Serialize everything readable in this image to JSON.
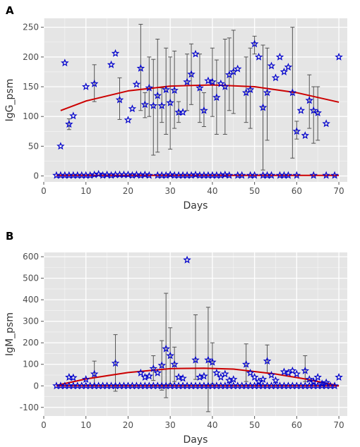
{
  "style": {
    "panel_bg": "#e5e5e5",
    "grid_color": "#ffffff",
    "marker_color": "#0000cc",
    "curve_color": "#cc0000",
    "errorbar_color": "#555555"
  },
  "chart_data": [
    {
      "type": "scatter",
      "panel_label": "A",
      "xlabel": "Days",
      "ylabel": "IgG_psm",
      "xlim": [
        0,
        72
      ],
      "ylim": [
        -10,
        265
      ],
      "xticks": [
        0,
        10,
        20,
        30,
        40,
        50,
        60,
        70
      ],
      "yticks": [
        0,
        50,
        100,
        150,
        200,
        250
      ],
      "grid": true,
      "marker": "star",
      "points": [
        {
          "x": 4,
          "y": 50
        },
        {
          "x": 5,
          "y": 190
        },
        {
          "x": 6,
          "y": 87,
          "lo": 78,
          "hi": 96
        },
        {
          "x": 7,
          "y": 101
        },
        {
          "x": 10,
          "y": 150
        },
        {
          "x": 12,
          "y": 155,
          "lo": 125,
          "hi": 187
        },
        {
          "x": 16,
          "y": 187
        },
        {
          "x": 17,
          "y": 206
        },
        {
          "x": 18,
          "y": 128,
          "lo": 95,
          "hi": 165
        },
        {
          "x": 20,
          "y": 94
        },
        {
          "x": 21,
          "y": 113
        },
        {
          "x": 22,
          "y": 154
        },
        {
          "x": 23,
          "y": 181,
          "lo": 110,
          "hi": 255
        },
        {
          "x": 24,
          "y": 120,
          "lo": 98,
          "hi": 140
        },
        {
          "x": 25,
          "y": 148,
          "lo": 100,
          "hi": 200
        },
        {
          "x": 26,
          "y": 118,
          "lo": 35,
          "hi": 196
        },
        {
          "x": 27,
          "y": 135,
          "lo": 40,
          "hi": 230
        },
        {
          "x": 28,
          "y": 118,
          "lo": 90,
          "hi": 148
        },
        {
          "x": 29,
          "y": 145,
          "lo": 70,
          "hi": 215
        },
        {
          "x": 30,
          "y": 123,
          "lo": 45,
          "hi": 200
        },
        {
          "x": 31,
          "y": 144,
          "lo": 80,
          "hi": 210
        },
        {
          "x": 32,
          "y": 107,
          "lo": 90,
          "hi": 125
        },
        {
          "x": 33,
          "y": 107
        },
        {
          "x": 34,
          "y": 158,
          "lo": 110,
          "hi": 205
        },
        {
          "x": 35,
          "y": 171,
          "lo": 120,
          "hi": 222
        },
        {
          "x": 36,
          "y": 205
        },
        {
          "x": 37,
          "y": 148,
          "lo": 90,
          "hi": 205
        },
        {
          "x": 38,
          "y": 110,
          "lo": 83,
          "hi": 140
        },
        {
          "x": 39,
          "y": 160
        },
        {
          "x": 40,
          "y": 158,
          "lo": 100,
          "hi": 215
        },
        {
          "x": 41,
          "y": 132,
          "lo": 70,
          "hi": 195
        },
        {
          "x": 42,
          "y": 155
        },
        {
          "x": 43,
          "y": 150,
          "lo": 70,
          "hi": 230
        },
        {
          "x": 44,
          "y": 170,
          "lo": 110,
          "hi": 232
        },
        {
          "x": 45,
          "y": 175,
          "lo": 105,
          "hi": 245
        },
        {
          "x": 46,
          "y": 180
        },
        {
          "x": 48,
          "y": 140,
          "lo": 90,
          "hi": 200
        },
        {
          "x": 49,
          "y": 145,
          "lo": 80,
          "hi": 215
        },
        {
          "x": 50,
          "y": 222,
          "lo": 205,
          "hi": 235
        },
        {
          "x": 51,
          "y": 200
        },
        {
          "x": 52,
          "y": 115,
          "lo": 10,
          "hi": 220
        },
        {
          "x": 53,
          "y": 140,
          "lo": 60,
          "hi": 215
        },
        {
          "x": 54,
          "y": 185
        },
        {
          "x": 55,
          "y": 165
        },
        {
          "x": 56,
          "y": 200
        },
        {
          "x": 57,
          "y": 175
        },
        {
          "x": 58,
          "y": 183
        },
        {
          "x": 59,
          "y": 140,
          "lo": 30,
          "hi": 250
        },
        {
          "x": 60,
          "y": 75,
          "lo": 62,
          "hi": 92
        },
        {
          "x": 61,
          "y": 110
        },
        {
          "x": 62,
          "y": 68
        },
        {
          "x": 63,
          "y": 127,
          "lo": 80,
          "hi": 170
        },
        {
          "x": 64,
          "y": 110,
          "lo": 55,
          "hi": 150
        },
        {
          "x": 65,
          "y": 106,
          "lo": 60,
          "hi": 150
        },
        {
          "x": 67,
          "y": 88
        },
        {
          "x": 70,
          "y": 200
        },
        {
          "x": 3,
          "y": 1
        },
        {
          "x": 4,
          "y": 1
        },
        {
          "x": 5,
          "y": 1
        },
        {
          "x": 6,
          "y": 1
        },
        {
          "x": 7,
          "y": 1
        },
        {
          "x": 8,
          "y": 1
        },
        {
          "x": 9,
          "y": 1
        },
        {
          "x": 10,
          "y": 1
        },
        {
          "x": 11,
          "y": 1
        },
        {
          "x": 12,
          "y": 2
        },
        {
          "x": 13,
          "y": 3
        },
        {
          "x": 14,
          "y": 1
        },
        {
          "x": 15,
          "y": 2
        },
        {
          "x": 16,
          "y": 1
        },
        {
          "x": 17,
          "y": 2
        },
        {
          "x": 18,
          "y": 2
        },
        {
          "x": 19,
          "y": 2
        },
        {
          "x": 20,
          "y": 2
        },
        {
          "x": 21,
          "y": 1
        },
        {
          "x": 22,
          "y": 2
        },
        {
          "x": 23,
          "y": 1
        },
        {
          "x": 24,
          "y": 2
        },
        {
          "x": 25,
          "y": 1
        },
        {
          "x": 27,
          "y": 1
        },
        {
          "x": 28,
          "y": 1
        },
        {
          "x": 29,
          "y": 1
        },
        {
          "x": 30,
          "y": 2
        },
        {
          "x": 31,
          "y": 1
        },
        {
          "x": 32,
          "y": 1
        },
        {
          "x": 33,
          "y": 1
        },
        {
          "x": 34,
          "y": 1
        },
        {
          "x": 35,
          "y": 1
        },
        {
          "x": 36,
          "y": 2
        },
        {
          "x": 37,
          "y": 1
        },
        {
          "x": 38,
          "y": 1
        },
        {
          "x": 39,
          "y": 1
        },
        {
          "x": 40,
          "y": 1
        },
        {
          "x": 41,
          "y": 1
        },
        {
          "x": 42,
          "y": 1
        },
        {
          "x": 43,
          "y": 2
        },
        {
          "x": 44,
          "y": 1
        },
        {
          "x": 46,
          "y": 1
        },
        {
          "x": 47,
          "y": 1
        },
        {
          "x": 49,
          "y": 1
        },
        {
          "x": 50,
          "y": 1
        },
        {
          "x": 52,
          "y": 1
        },
        {
          "x": 53,
          "y": 1
        },
        {
          "x": 54,
          "y": 1
        },
        {
          "x": 56,
          "y": 1
        },
        {
          "x": 57,
          "y": 1
        },
        {
          "x": 58,
          "y": 1
        },
        {
          "x": 60,
          "y": 1
        },
        {
          "x": 64,
          "y": 1
        },
        {
          "x": 67,
          "y": 1
        },
        {
          "x": 69,
          "y": 1
        }
      ],
      "fits": [
        {
          "x_start": 4,
          "x_end": 70,
          "points": [
            [
              4,
              110
            ],
            [
              10,
              126
            ],
            [
              20,
              143
            ],
            [
              30,
              151
            ],
            [
              40,
              153
            ],
            [
              50,
              150
            ],
            [
              60,
              140
            ],
            [
              70,
              124
            ]
          ]
        },
        {
          "x_start": 3,
          "x_end": 70,
          "points": [
            [
              3,
              1
            ],
            [
              70,
              1
            ]
          ]
        }
      ]
    },
    {
      "type": "scatter",
      "panel_label": "B",
      "xlabel": "Days",
      "ylabel": "IgM_psm",
      "xlim": [
        0,
        72
      ],
      "ylim": [
        -140,
        620
      ],
      "xticks": [
        0,
        10,
        20,
        30,
        40,
        50,
        60,
        70
      ],
      "yticks": [
        -100,
        0,
        100,
        200,
        300,
        400,
        500,
        600
      ],
      "grid": true,
      "marker": "star",
      "points": [
        {
          "x": 6,
          "y": 40
        },
        {
          "x": 7,
          "y": 38
        },
        {
          "x": 10,
          "y": 30
        },
        {
          "x": 12,
          "y": 55,
          "lo": 0,
          "hi": 115
        },
        {
          "x": 17,
          "y": 105,
          "lo": -25,
          "hi": 238
        },
        {
          "x": 23,
          "y": 60
        },
        {
          "x": 24,
          "y": 40
        },
        {
          "x": 25,
          "y": 45
        },
        {
          "x": 26,
          "y": 80,
          "lo": 25,
          "hi": 140
        },
        {
          "x": 27,
          "y": 60
        },
        {
          "x": 28,
          "y": 95,
          "lo": -20,
          "hi": 210
        },
        {
          "x": 29,
          "y": 172,
          "lo": -55,
          "hi": 430
        },
        {
          "x": 30,
          "y": 140,
          "lo": 10,
          "hi": 270
        },
        {
          "x": 31,
          "y": 100,
          "lo": 20,
          "hi": 180
        },
        {
          "x": 32,
          "y": 40
        },
        {
          "x": 33,
          "y": 35
        },
        {
          "x": 34,
          "y": 585
        },
        {
          "x": 36,
          "y": 120,
          "lo": 30,
          "hi": 330
        },
        {
          "x": 37,
          "y": 40
        },
        {
          "x": 38,
          "y": 45
        },
        {
          "x": 39,
          "y": 120,
          "lo": -120,
          "hi": 365
        },
        {
          "x": 40,
          "y": 110,
          "lo": 10,
          "hi": 200
        },
        {
          "x": 41,
          "y": 60
        },
        {
          "x": 42,
          "y": 40
        },
        {
          "x": 43,
          "y": 55
        },
        {
          "x": 44,
          "y": 25
        },
        {
          "x": 45,
          "y": 30
        },
        {
          "x": 48,
          "y": 100,
          "lo": 20,
          "hi": 195
        },
        {
          "x": 49,
          "y": 60
        },
        {
          "x": 50,
          "y": 40
        },
        {
          "x": 51,
          "y": 20
        },
        {
          "x": 52,
          "y": 30
        },
        {
          "x": 53,
          "y": 115,
          "lo": 60,
          "hi": 190
        },
        {
          "x": 54,
          "y": 50
        },
        {
          "x": 55,
          "y": 25
        },
        {
          "x": 57,
          "y": 65
        },
        {
          "x": 58,
          "y": 60
        },
        {
          "x": 59,
          "y": 70
        },
        {
          "x": 60,
          "y": 55
        },
        {
          "x": 62,
          "y": 70,
          "lo": 20,
          "hi": 140
        },
        {
          "x": 63,
          "y": 30
        },
        {
          "x": 64,
          "y": 20
        },
        {
          "x": 65,
          "y": 40
        },
        {
          "x": 66,
          "y": 10
        },
        {
          "x": 67,
          "y": 15
        },
        {
          "x": 70,
          "y": 40
        },
        {
          "x": 3,
          "y": 0
        },
        {
          "x": 4,
          "y": 0
        },
        {
          "x": 5,
          "y": 0
        },
        {
          "x": 6,
          "y": 0
        },
        {
          "x": 7,
          "y": 0
        },
        {
          "x": 8,
          "y": 0
        },
        {
          "x": 9,
          "y": 0
        },
        {
          "x": 10,
          "y": 0
        },
        {
          "x": 11,
          "y": 0
        },
        {
          "x": 12,
          "y": 0
        },
        {
          "x": 13,
          "y": 0
        },
        {
          "x": 14,
          "y": 0
        },
        {
          "x": 15,
          "y": 0
        },
        {
          "x": 16,
          "y": 0
        },
        {
          "x": 17,
          "y": 0
        },
        {
          "x": 18,
          "y": 0
        },
        {
          "x": 19,
          "y": 0
        },
        {
          "x": 20,
          "y": 0
        },
        {
          "x": 21,
          "y": 0
        },
        {
          "x": 22,
          "y": 0
        },
        {
          "x": 23,
          "y": 0
        },
        {
          "x": 24,
          "y": 0
        },
        {
          "x": 25,
          "y": 0
        },
        {
          "x": 26,
          "y": 0
        },
        {
          "x": 27,
          "y": 0
        },
        {
          "x": 28,
          "y": 0
        },
        {
          "x": 29,
          "y": 0
        },
        {
          "x": 30,
          "y": 0
        },
        {
          "x": 31,
          "y": 0
        },
        {
          "x": 32,
          "y": 0
        },
        {
          "x": 33,
          "y": 0
        },
        {
          "x": 34,
          "y": 0
        },
        {
          "x": 35,
          "y": 0
        },
        {
          "x": 36,
          "y": 0
        },
        {
          "x": 37,
          "y": 0
        },
        {
          "x": 38,
          "y": 0
        },
        {
          "x": 39,
          "y": 0
        },
        {
          "x": 40,
          "y": 0
        },
        {
          "x": 41,
          "y": 0
        },
        {
          "x": 42,
          "y": 0
        },
        {
          "x": 43,
          "y": 0
        },
        {
          "x": 44,
          "y": 0
        },
        {
          "x": 45,
          "y": 0
        },
        {
          "x": 46,
          "y": 0
        },
        {
          "x": 47,
          "y": 0
        },
        {
          "x": 48,
          "y": 0
        },
        {
          "x": 49,
          "y": 0
        },
        {
          "x": 50,
          "y": 0
        },
        {
          "x": 51,
          "y": 0
        },
        {
          "x": 52,
          "y": 0
        },
        {
          "x": 53,
          "y": 0
        },
        {
          "x": 54,
          "y": 0
        },
        {
          "x": 55,
          "y": 0
        },
        {
          "x": 56,
          "y": 0
        },
        {
          "x": 57,
          "y": 0
        },
        {
          "x": 58,
          "y": 0
        },
        {
          "x": 59,
          "y": 0
        },
        {
          "x": 60,
          "y": 0
        },
        {
          "x": 61,
          "y": 0
        },
        {
          "x": 62,
          "y": 0
        },
        {
          "x": 63,
          "y": 0
        },
        {
          "x": 64,
          "y": 0
        },
        {
          "x": 65,
          "y": 0
        },
        {
          "x": 66,
          "y": 0
        },
        {
          "x": 67,
          "y": 0
        },
        {
          "x": 68,
          "y": 0
        },
        {
          "x": 69,
          "y": 0
        }
      ],
      "fits": [
        {
          "x_start": 3,
          "x_end": 70,
          "points": [
            [
              3,
              2
            ],
            [
              10,
              32
            ],
            [
              20,
              62
            ],
            [
              30,
              80
            ],
            [
              38,
              82
            ],
            [
              45,
              78
            ],
            [
              55,
              55
            ],
            [
              62,
              32
            ],
            [
              70,
              0
            ]
          ]
        },
        {
          "x_start": 3,
          "x_end": 70,
          "points": [
            [
              3,
              0
            ],
            [
              70,
              0
            ]
          ]
        }
      ]
    }
  ]
}
